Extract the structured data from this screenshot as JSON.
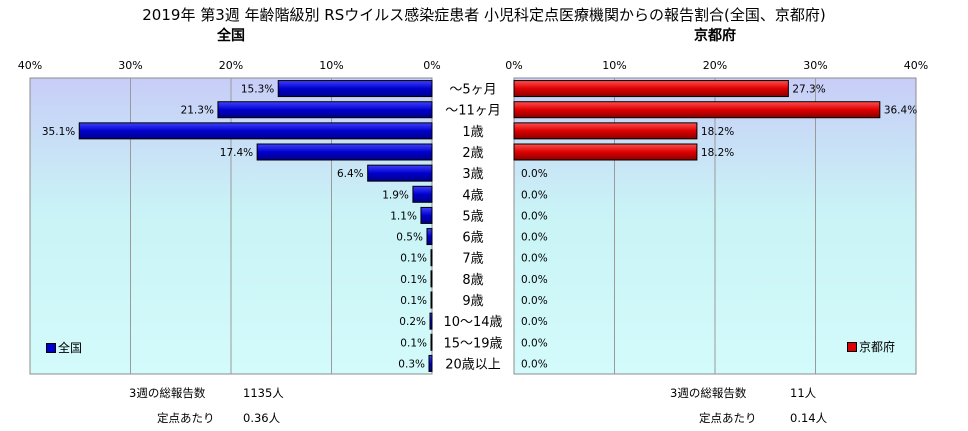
{
  "title": "2019年 第3週 年齢階級別 RSウイルス感染症患者 小児科定点医療機関からの報告割合(全国、京都府)",
  "colors": {
    "national": "#0000cc",
    "kyoto": "#dd0000"
  },
  "chart_data": {
    "type": "bar",
    "categories": [
      "～5ヶ月",
      "～11ヶ月",
      "1歳",
      "2歳",
      "3歳",
      "4歳",
      "5歳",
      "6歳",
      "7歳",
      "8歳",
      "9歳",
      "10～14歳",
      "15～19歳",
      "20歳以上"
    ],
    "tick_labels": [
      "0%",
      "10%",
      "20%",
      "30%",
      "40%"
    ],
    "xlim": [
      0,
      40
    ],
    "series": [
      {
        "name": "全国",
        "panel_title": "全国",
        "values": [
          15.3,
          21.3,
          35.1,
          17.4,
          6.4,
          1.9,
          1.1,
          0.5,
          0.1,
          0.1,
          0.1,
          0.2,
          0.1,
          0.3
        ],
        "labels": [
          "15.3%",
          "21.3%",
          "35.1%",
          "17.4%",
          "6.4%",
          "1.9%",
          "1.1%",
          "0.5%",
          "0.1%",
          "0.1%",
          "0.1%",
          "0.2%",
          "0.1%",
          "0.3%"
        ]
      },
      {
        "name": "京都府",
        "panel_title": "京都府",
        "values": [
          27.3,
          36.4,
          18.2,
          18.2,
          0,
          0,
          0,
          0,
          0,
          0,
          0,
          0,
          0,
          0
        ],
        "labels": [
          "27.3%",
          "36.4%",
          "18.2%",
          "18.2%",
          "0.0%",
          "0.0%",
          "0.0%",
          "0.0%",
          "0.0%",
          "0.0%",
          "0.0%",
          "0.0%",
          "0.0%",
          "0.0%"
        ]
      }
    ]
  },
  "footer": {
    "national": {
      "total_label": "3週の総報告数",
      "total_value": "1135人",
      "per_label": "定点あたり",
      "per_value": "0.36人"
    },
    "kyoto": {
      "total_label": "3週の総報告数",
      "total_value": "11人",
      "per_label": "定点あたり",
      "per_value": "0.14人"
    }
  }
}
